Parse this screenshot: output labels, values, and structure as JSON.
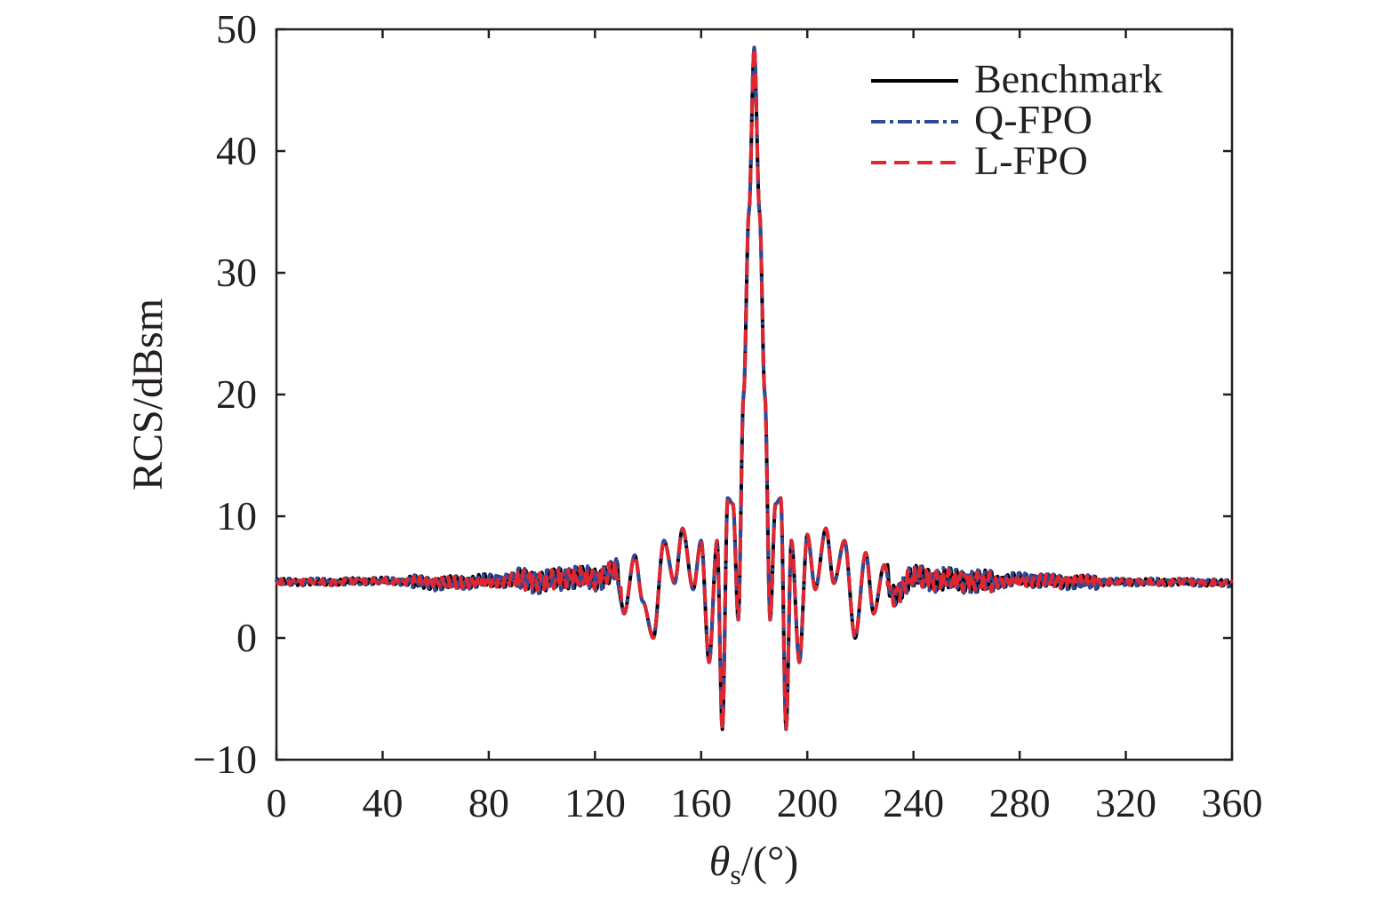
{
  "chart_data": {
    "type": "line",
    "xlabel": "θs/(°)",
    "xlabel_main": "θ",
    "xlabel_sub": "s",
    "xlabel_rest": "/(°)",
    "ylabel": "RCS/dBsm",
    "xlim": [
      0,
      360
    ],
    "ylim": [
      -10,
      50
    ],
    "xticks": [
      0,
      40,
      80,
      120,
      160,
      200,
      240,
      280,
      320,
      360
    ],
    "yticks": [
      -10,
      0,
      10,
      20,
      30,
      40,
      50
    ],
    "ytick_labels": [
      "−10",
      "0",
      "10",
      "20",
      "30",
      "40",
      "50"
    ],
    "grid": false,
    "legend_position": "top-right",
    "series": [
      {
        "name": "Benchmark",
        "color": "#000000",
        "style": "solid"
      },
      {
        "name": "Q-FPO",
        "color": "#2e4b9b",
        "style": "dash-dot"
      },
      {
        "name": "L-FPO",
        "color": "#e0262f",
        "style": "dashed"
      }
    ],
    "shared_x": [
      0,
      20,
      40,
      60,
      80,
      95,
      100,
      110,
      120,
      128,
      131,
      135,
      138,
      142,
      146,
      150,
      153,
      157,
      160,
      163,
      166,
      168,
      170,
      172,
      174,
      176,
      178,
      180,
      182,
      184,
      186,
      188,
      190,
      192,
      194,
      197,
      200,
      203,
      207,
      210,
      214,
      218,
      222,
      225,
      229,
      232,
      240,
      250,
      260,
      265,
      280,
      300,
      320,
      340,
      360
    ],
    "shared_y": [
      4.6,
      4.6,
      4.7,
      4.5,
      4.7,
      4.8,
      4.6,
      5.0,
      4.9,
      5.5,
      2.0,
      6.8,
      3.0,
      0.0,
      8.0,
      4.5,
      9.0,
      4.0,
      8.0,
      -2.0,
      8.0,
      -7.5,
      11.5,
      11.0,
      1.5,
      20.0,
      35.0,
      48.5,
      35.0,
      20.0,
      1.5,
      11.0,
      11.5,
      -7.5,
      8.0,
      -2.0,
      8.5,
      4.0,
      9.0,
      4.5,
      8.0,
      0.0,
      7.0,
      2.0,
      6.0,
      3.5,
      5.0,
      4.8,
      4.7,
      4.6,
      4.8,
      4.6,
      4.6,
      4.6,
      4.5
    ]
  }
}
